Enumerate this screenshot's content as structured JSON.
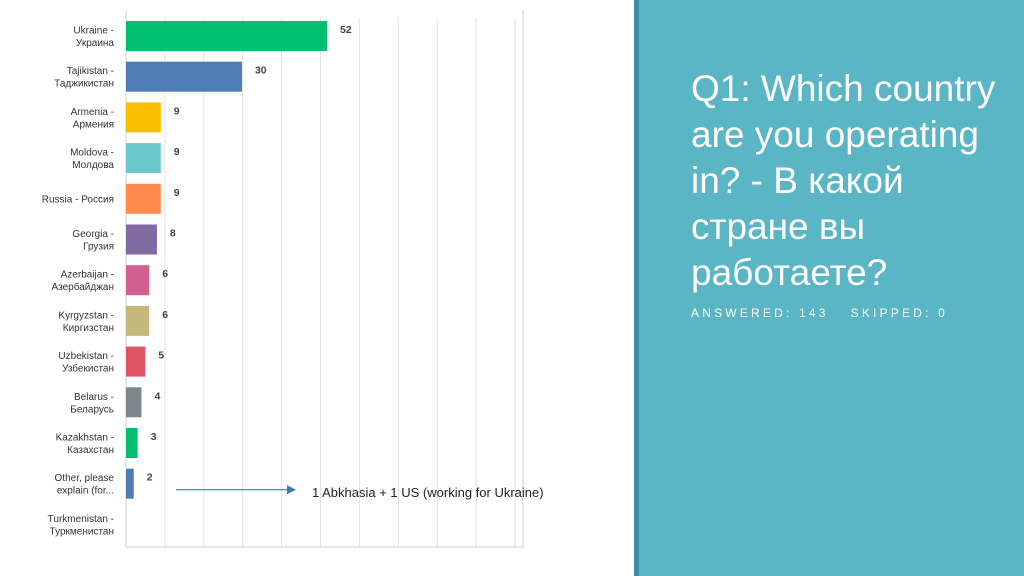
{
  "chart_data": {
    "type": "bar",
    "orientation": "horizontal",
    "categories": [
      [
        "Ukraine -",
        "Украина"
      ],
      [
        "Tajikistan -",
        "Таджикистан"
      ],
      [
        "Armenia -",
        "Армения"
      ],
      [
        "Moldova -",
        "Молдова"
      ],
      [
        "Russia - Россия"
      ],
      [
        "Georgia -",
        "Грузия"
      ],
      [
        "Azerbaijan -",
        "Азербайджан"
      ],
      [
        "Kyrgyzstan -",
        "Киргизстан"
      ],
      [
        "Uzbekistan -",
        "Узбекистан"
      ],
      [
        "Belarus -",
        "Беларусь"
      ],
      [
        "Kazakhstan -",
        "Казахстан"
      ],
      [
        "Other, please",
        "explain (for..."
      ],
      [
        "Turkmenistan -",
        "Туркменистан"
      ]
    ],
    "values": [
      52,
      30,
      9,
      9,
      9,
      8,
      6,
      6,
      5,
      4,
      3,
      2,
      null
    ],
    "colors": [
      "#00bf6f",
      "#507cb6",
      "#f9be00",
      "#6bc8cd",
      "#ff8b4f",
      "#7f6aa2",
      "#d25f90",
      "#c5b87c",
      "#e05465",
      "#7d868c",
      "#00bf6f",
      "#507cb6",
      "#f9be00"
    ],
    "xlim": [
      0,
      52
    ],
    "grid": true,
    "legend": "none"
  },
  "annotation": {
    "text": "1 Abkhasia + 1 US (working for Ukraine)",
    "target_category_index": 11
  },
  "panel": {
    "title": "Q1: Which country are you operating in? - В какой стране вы работаете?",
    "answered": "ANSWERED: 143",
    "skipped": "SKIPPED: 0",
    "background_color": "#5ab5c4",
    "border_color": "#3b8fa6"
  }
}
